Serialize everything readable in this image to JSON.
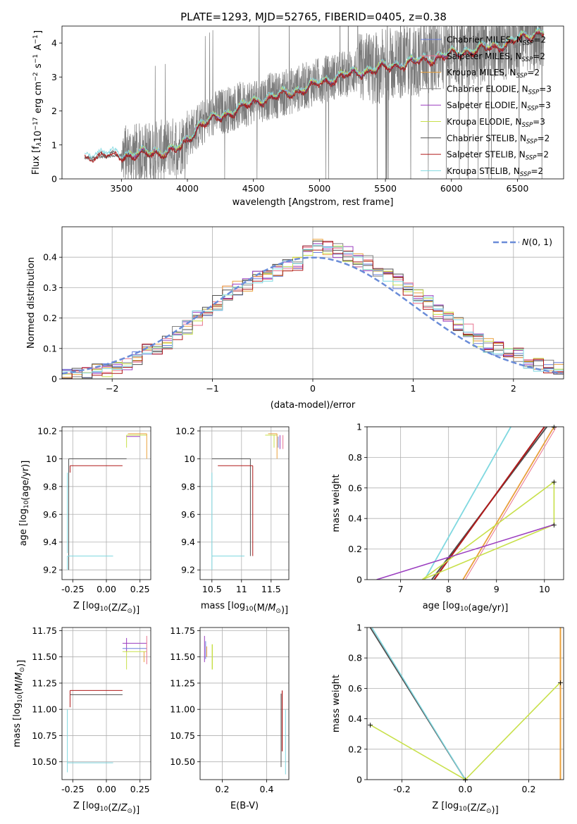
{
  "figure_title": "PLATE=1293, MJD=52765, FIBERID=0405, z=0.38",
  "colors": {
    "chabrier_miles": "#6a7fdc",
    "salpeter_miles": "#e8738f",
    "kroupa_miles": "#e9a03c",
    "chabrier_elodie": "#808080",
    "salpeter_elodie": "#9a3cbf",
    "kroupa_elodie": "#c8e04a",
    "chabrier_stelib": "#505050",
    "salpeter_stelib": "#b01a1a",
    "kroupa_stelib": "#7fd8e0",
    "normal": "#6a8cd8",
    "grid": "#b0b0b0"
  },
  "chart_data": [
    {
      "id": "spectrum",
      "type": "line",
      "xlabel": "wavelength [Angstrom, rest frame]",
      "ylabel": "Flux [f_λ10^-17 erg cm^-2 s^-1 A^-1]",
      "xlim": [
        3050,
        6850
      ],
      "ylim": [
        0,
        4.5
      ],
      "xticks": [
        3500,
        4000,
        4500,
        5000,
        5500,
        6000,
        6500
      ],
      "yticks": [
        0,
        1,
        2,
        3,
        4
      ],
      "grid": false,
      "legend_position": "top-right",
      "legend": [
        {
          "label": "Chabrier MILES, N",
          "sub": "SSP",
          "suffix": "=2",
          "color_key": "chabrier_miles"
        },
        {
          "label": "Salpeter MILES, N",
          "sub": "SSP",
          "suffix": "=2",
          "color_key": "salpeter_miles"
        },
        {
          "label": "Kroupa MILES, N",
          "sub": "SSP",
          "suffix": "=2",
          "color_key": "kroupa_miles"
        },
        {
          "label": "Chabrier ELODIE, N",
          "sub": "SSP",
          "suffix": "=3",
          "color_key": "chabrier_elodie"
        },
        {
          "label": "Salpeter ELODIE, N",
          "sub": "SSP",
          "suffix": "=3",
          "color_key": "salpeter_elodie"
        },
        {
          "label": "Kroupa ELODIE, N",
          "sub": "SSP",
          "suffix": "=3",
          "color_key": "kroupa_elodie"
        },
        {
          "label": "Chabrier STELIB, N",
          "sub": "SSP",
          "suffix": "=2",
          "color_key": "chabrier_stelib"
        },
        {
          "label": "Salpeter STELIB, N",
          "sub": "SSP",
          "suffix": "=2",
          "color_key": "salpeter_stelib"
        },
        {
          "label": "Kroupa STELIB, N",
          "sub": "SSP",
          "suffix": "=2",
          "color_key": "kroupa_stelib"
        }
      ],
      "data_series": {
        "name": "data",
        "x_start": 3220,
        "x_end": 6700,
        "continuum": [
          [
            3220,
            0.6
          ],
          [
            3500,
            0.7
          ],
          [
            3800,
            0.85
          ],
          [
            3950,
            1.0
          ],
          [
            4000,
            1.3
          ],
          [
            4200,
            1.9
          ],
          [
            4500,
            2.3
          ],
          [
            4800,
            2.6
          ],
          [
            5000,
            2.9
          ],
          [
            5300,
            3.2
          ],
          [
            5600,
            3.4
          ],
          [
            6000,
            3.7
          ],
          [
            6300,
            3.9
          ],
          [
            6700,
            4.3
          ]
        ]
      },
      "model_series": {
        "x_start": 3220,
        "x_end": 6700,
        "continuum": [
          [
            3220,
            0.62
          ],
          [
            3300,
            0.72
          ],
          [
            3500,
            0.68
          ],
          [
            3700,
            0.74
          ],
          [
            3850,
            0.8
          ],
          [
            3950,
            0.9
          ],
          [
            4000,
            1.15
          ],
          [
            4100,
            1.6
          ],
          [
            4300,
            1.9
          ],
          [
            4500,
            2.25
          ],
          [
            4700,
            2.45
          ],
          [
            4900,
            2.65
          ],
          [
            5000,
            2.82
          ],
          [
            5200,
            3.05
          ],
          [
            5400,
            3.2
          ],
          [
            5600,
            3.35
          ],
          [
            5800,
            3.5
          ],
          [
            6000,
            3.65
          ],
          [
            6200,
            3.8
          ],
          [
            6400,
            3.95
          ],
          [
            6700,
            4.35
          ]
        ]
      }
    },
    {
      "id": "residuals",
      "type": "area",
      "xlabel": "(data-model)/error",
      "ylabel": "Normed distribution",
      "xlim": [
        -2.5,
        2.5
      ],
      "ylim": [
        0,
        0.5
      ],
      "xticks": [
        -2,
        -1,
        0,
        1,
        2
      ],
      "yticks": [
        0.0,
        0.1,
        0.2,
        0.3,
        0.4
      ],
      "grid": true,
      "legend_position": "top-right",
      "legend": [
        {
          "label": "N(0,1)",
          "color_key": "normal"
        }
      ],
      "bin_width": 0.1,
      "hist_centers": [
        -2.45,
        -2.35,
        -2.25,
        -2.15,
        -2.05,
        -1.95,
        -1.85,
        -1.75,
        -1.65,
        -1.55,
        -1.45,
        -1.35,
        -1.25,
        -1.15,
        -1.05,
        -0.95,
        -0.85,
        -0.75,
        -0.65,
        -0.55,
        -0.45,
        -0.35,
        -0.25,
        -0.15,
        -0.05,
        0.05,
        0.15,
        0.25,
        0.35,
        0.45,
        0.55,
        0.65,
        0.75,
        0.85,
        0.95,
        1.05,
        1.15,
        1.25,
        1.35,
        1.45,
        1.55,
        1.65,
        1.75,
        1.85,
        1.95,
        2.05,
        2.15,
        2.25,
        2.35,
        2.45
      ],
      "hist_base": [
        0.01,
        0.015,
        0.02,
        0.025,
        0.03,
        0.04,
        0.05,
        0.07,
        0.09,
        0.1,
        0.12,
        0.15,
        0.17,
        0.2,
        0.23,
        0.25,
        0.28,
        0.3,
        0.31,
        0.33,
        0.34,
        0.36,
        0.37,
        0.38,
        0.42,
        0.44,
        0.43,
        0.42,
        0.41,
        0.39,
        0.38,
        0.36,
        0.34,
        0.32,
        0.3,
        0.27,
        0.25,
        0.22,
        0.2,
        0.18,
        0.16,
        0.13,
        0.11,
        0.1,
        0.09,
        0.08,
        0.06,
        0.05,
        0.04,
        0.03
      ]
    },
    {
      "id": "age_vs_Z",
      "type": "line",
      "xlabel": "Z [log10(Z/Z⊙)]",
      "ylabel": "age [log10(age/yr)]",
      "xlim": [
        -0.33,
        0.33
      ],
      "ylim": [
        9.13,
        10.23
      ],
      "xticks": [
        -0.25,
        0.0,
        0.25
      ],
      "xtick_labels": [
        "-0.25",
        "0.00",
        "0.25"
      ],
      "yticks": [
        9.2,
        9.4,
        9.6,
        9.8,
        10.0,
        10.2
      ],
      "grid": true
    },
    {
      "id": "age_vs_mass",
      "type": "line",
      "xlabel": "mass [log10(M/M⊙)]",
      "ylabel": "",
      "xlim": [
        10.3,
        11.8
      ],
      "ylim": [
        9.13,
        10.23
      ],
      "xticks": [
        10.5,
        11.0,
        11.5
      ],
      "yticks": [
        9.2,
        9.4,
        9.6,
        9.8,
        10.0,
        10.2
      ],
      "grid": true
    },
    {
      "id": "weight_vs_age",
      "type": "line",
      "xlabel": "age [log10(age/yr)]",
      "ylabel": "mass weight",
      "xlim": [
        6.3,
        10.4
      ],
      "ylim": [
        0,
        1.0
      ],
      "xticks": [
        7,
        8,
        9,
        10
      ],
      "yticks": [
        0.0,
        0.2,
        0.4,
        0.6,
        0.8,
        1.0
      ],
      "grid": true
    },
    {
      "id": "mass_vs_Z",
      "type": "line",
      "xlabel": "Z [log10(Z/Z⊙)]",
      "ylabel": "mass [log10(M/M⊙)]",
      "xlim": [
        -0.33,
        0.33
      ],
      "ylim": [
        10.33,
        11.78
      ],
      "xticks": [
        -0.25,
        0.0,
        0.25
      ],
      "xtick_labels": [
        "-0.25",
        "0.00",
        "0.25"
      ],
      "yticks": [
        10.5,
        10.75,
        11.0,
        11.25,
        11.5,
        11.75
      ],
      "ytick_labels": [
        "10.50",
        "10.75",
        "11.00",
        "11.25",
        "11.50",
        "11.75"
      ],
      "grid": true
    },
    {
      "id": "mass_vs_ebv",
      "type": "line",
      "xlabel": "E(B-V)",
      "ylabel": "",
      "xlim": [
        0.1,
        0.5
      ],
      "ylim": [
        10.33,
        11.78
      ],
      "xticks": [
        0.2,
        0.4
      ],
      "xtick_labels": [
        "0.2",
        "0.4"
      ],
      "yticks": [
        10.5,
        10.75,
        11.0,
        11.25,
        11.5,
        11.75
      ],
      "ytick_labels": [
        "10.50",
        "10.75",
        "11.00",
        "11.25",
        "11.50",
        "11.75"
      ],
      "grid": true
    },
    {
      "id": "weight_vs_Z",
      "type": "line",
      "xlabel": "Z [log10(Z/Z⊙)]",
      "ylabel": "mass weight",
      "xlim": [
        -0.31,
        0.31
      ],
      "ylim": [
        0,
        1.0
      ],
      "xticks": [
        -0.2,
        0.0,
        0.2
      ],
      "xtick_labels": [
        "-0.2",
        "0.0",
        "0.2"
      ],
      "yticks": [
        0.0,
        0.2,
        0.4,
        0.6,
        0.8,
        1.0
      ],
      "grid": true
    }
  ]
}
